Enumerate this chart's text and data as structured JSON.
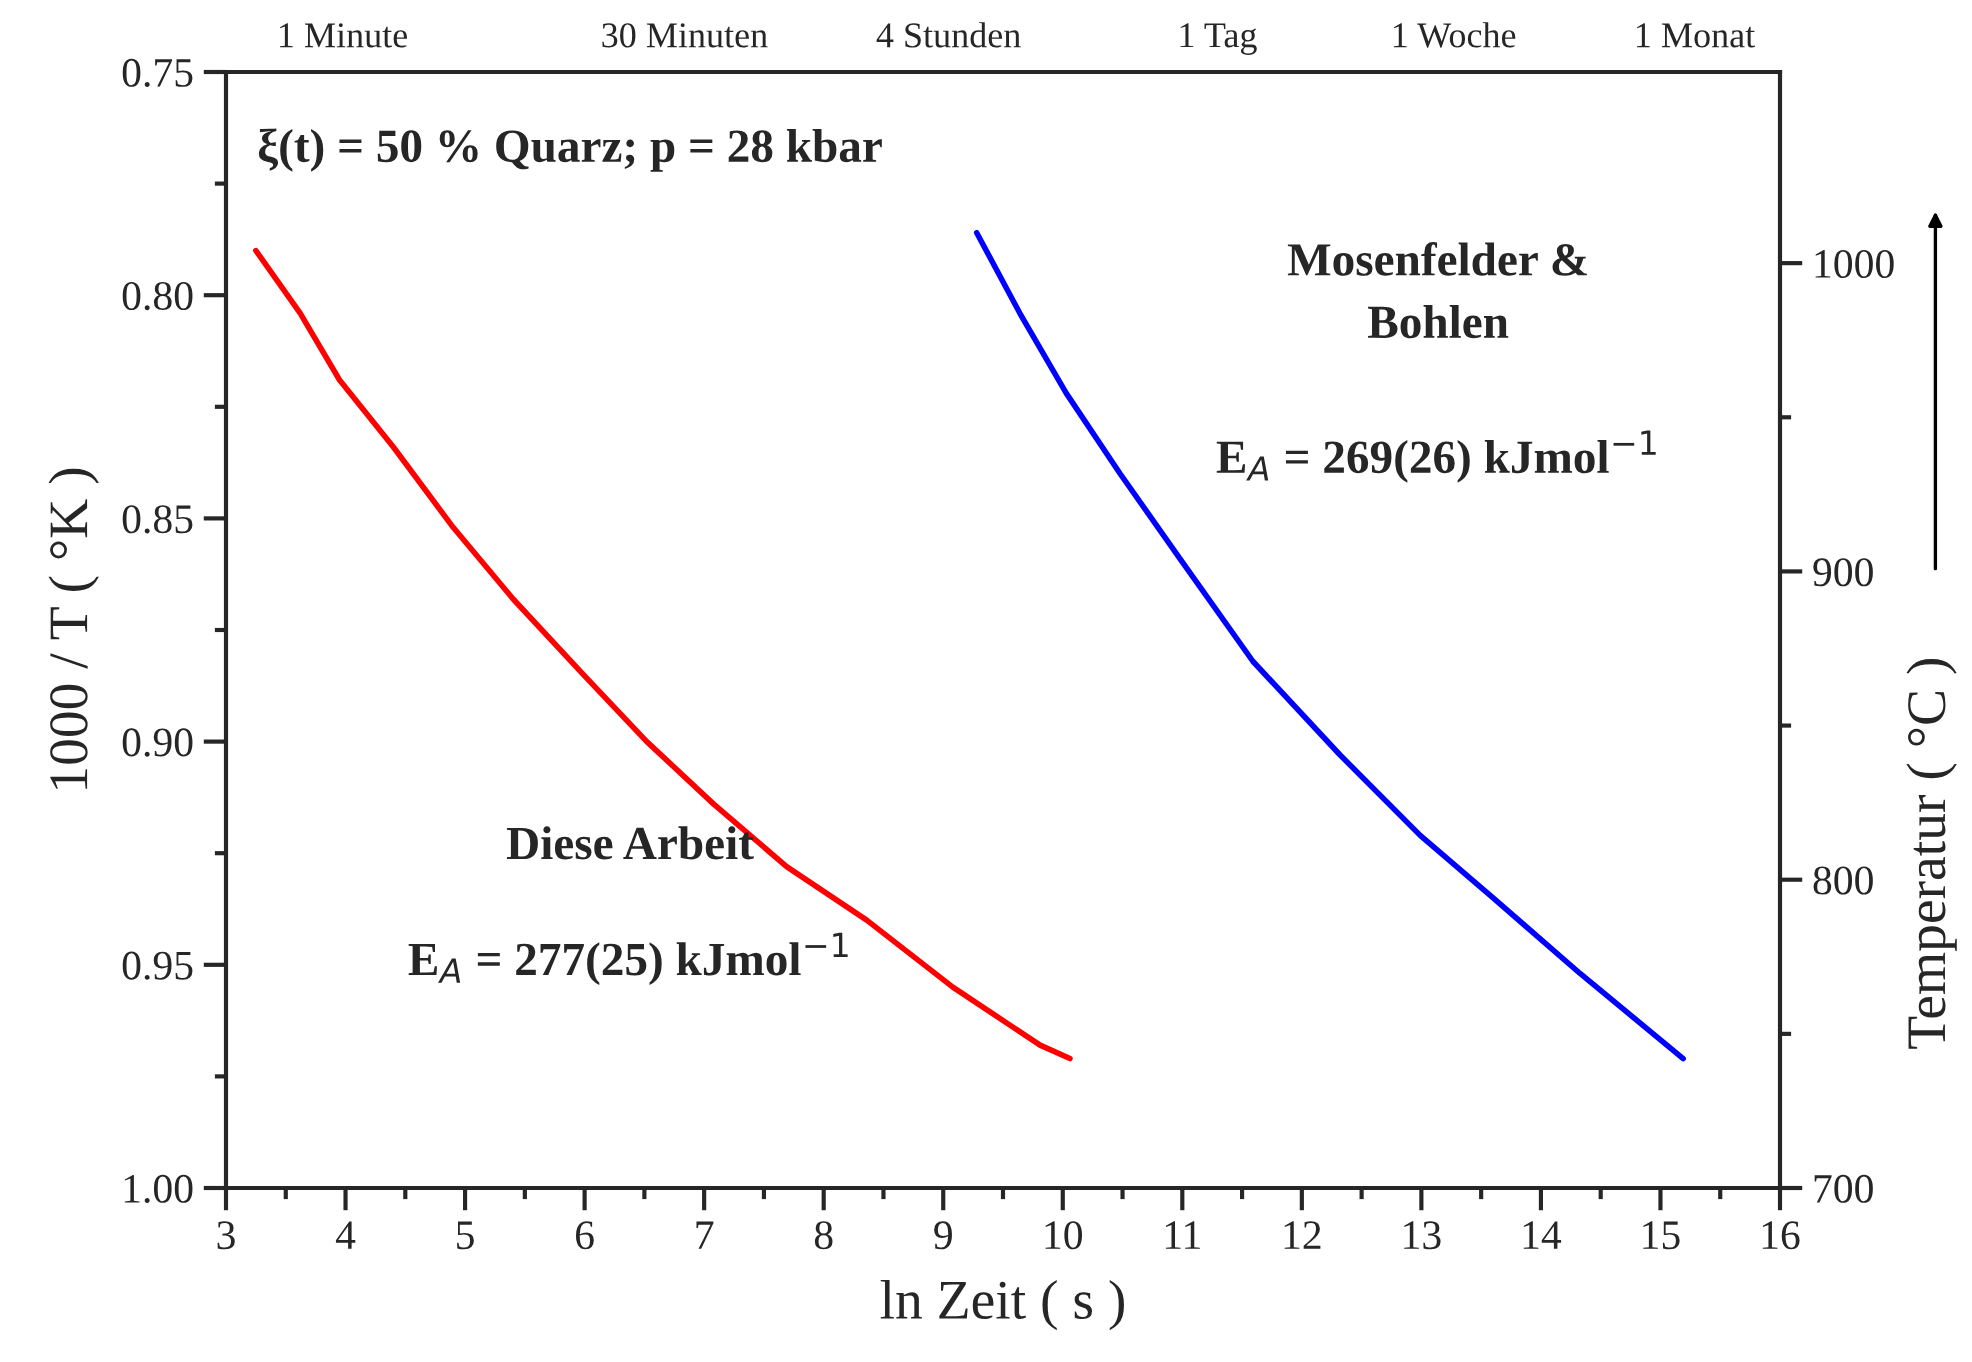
{
  "chart_data": {
    "type": "line",
    "xlabel": "ln Zeit ( s )",
    "ylabel": "1000 / T ( °K )",
    "y2label": "Temperatur ( °C )",
    "series": [
      {
        "color": "#ff0000",
        "x": [
          3.25,
          3.62,
          3.95,
          4.4,
          4.9,
          5.4,
          5.99,
          6.52,
          7.08,
          7.69,
          8.36,
          9.08,
          9.81,
          10.06
        ],
        "values": [
          0.79,
          0.804,
          0.819,
          0.834,
          0.852,
          0.868,
          0.885,
          0.9,
          0.914,
          0.928,
          0.94,
          0.955,
          0.968,
          0.971
        ]
      },
      {
        "color": "#0000ff",
        "x": [
          9.28,
          9.64,
          10.03,
          10.48,
          10.98,
          11.59,
          12.32,
          12.99,
          13.6,
          14.33,
          15.19
        ],
        "values": [
          0.786,
          0.804,
          0.822,
          0.84,
          0.859,
          0.882,
          0.903,
          0.921,
          0.935,
          0.952,
          0.971
        ]
      }
    ],
    "xlim": [
      3,
      16
    ],
    "xticks": [
      3,
      4,
      5,
      6,
      7,
      8,
      9,
      10,
      11,
      12,
      13,
      14,
      15,
      16
    ],
    "ylim": [
      1.0,
      0.75
    ],
    "yticks": [
      {
        "value": 0.75,
        "label": "0.75"
      },
      {
        "value": 0.8,
        "label": "0.80"
      },
      {
        "value": 0.85,
        "label": "0.85"
      },
      {
        "value": 0.9,
        "label": "0.90"
      },
      {
        "value": 0.95,
        "label": "0.95"
      },
      {
        "value": 1.0,
        "label": "1.00"
      }
    ],
    "y2lim": [
      700,
      1062
    ],
    "y2ticks": [
      700,
      800,
      900,
      1000
    ],
    "grid": false,
    "legend": false,
    "line_style": "solid",
    "marker": "none",
    "annotations": [
      "ξ(t) = 50 % Quarz; p = 28 kbar",
      "Diese Arbeit",
      "E$_{A}$ = 277(25) kJmol$^{−1}$",
      "Mosenfelder &\nBohlen",
      "E$_{A}$ = 269(26) kJmol$^{−1}$",
      "1 Minute",
      "30 Minuten",
      "4 Stunden",
      "1 Tag",
      "1 Woche",
      "1 Monat"
    ]
  }
}
